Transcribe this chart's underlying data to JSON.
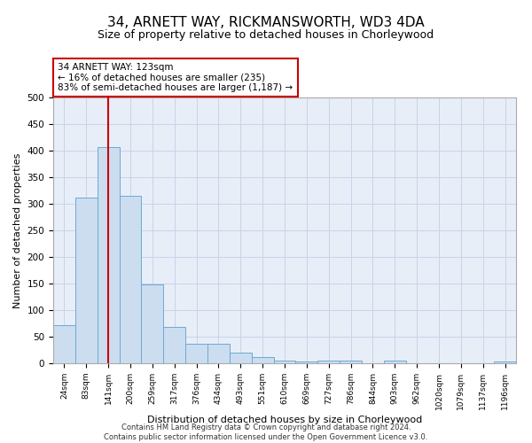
{
  "title": "34, ARNETT WAY, RICKMANSWORTH, WD3 4DA",
  "subtitle": "Size of property relative to detached houses in Chorleywood",
  "xlabel": "Distribution of detached houses by size in Chorleywood",
  "ylabel": "Number of detached properties",
  "footer_line1": "Contains HM Land Registry data © Crown copyright and database right 2024.",
  "footer_line2": "Contains public sector information licensed under the Open Government Licence v3.0.",
  "bin_labels": [
    "24sqm",
    "83sqm",
    "141sqm",
    "200sqm",
    "259sqm",
    "317sqm",
    "376sqm",
    "434sqm",
    "493sqm",
    "551sqm",
    "610sqm",
    "669sqm",
    "727sqm",
    "786sqm",
    "844sqm",
    "903sqm",
    "962sqm",
    "1020sqm",
    "1079sqm",
    "1137sqm",
    "1196sqm"
  ],
  "bar_values": [
    72,
    312,
    407,
    315,
    148,
    68,
    36,
    36,
    20,
    12,
    5,
    4,
    5,
    5,
    0,
    5,
    0,
    0,
    0,
    0,
    4
  ],
  "bar_color": "#ccddf0",
  "bar_edge_color": "#6aaad4",
  "property_line_x": 2.0,
  "property_line_color": "#cc0000",
  "annotation_line1": "34 ARNETT WAY: 123sqm",
  "annotation_line2": "← 16% of detached houses are smaller (235)",
  "annotation_line3": "83% of semi-detached houses are larger (1,187) →",
  "annotation_box_color": "#cc0000",
  "ylim": [
    0,
    500
  ],
  "yticks": [
    0,
    50,
    100,
    150,
    200,
    250,
    300,
    350,
    400,
    450,
    500
  ],
  "grid_color": "#c8d4e8",
  "bg_color": "#e8eef8",
  "title_fontsize": 11,
  "subtitle_fontsize": 9,
  "xlabel_fontsize": 8,
  "ylabel_fontsize": 8
}
